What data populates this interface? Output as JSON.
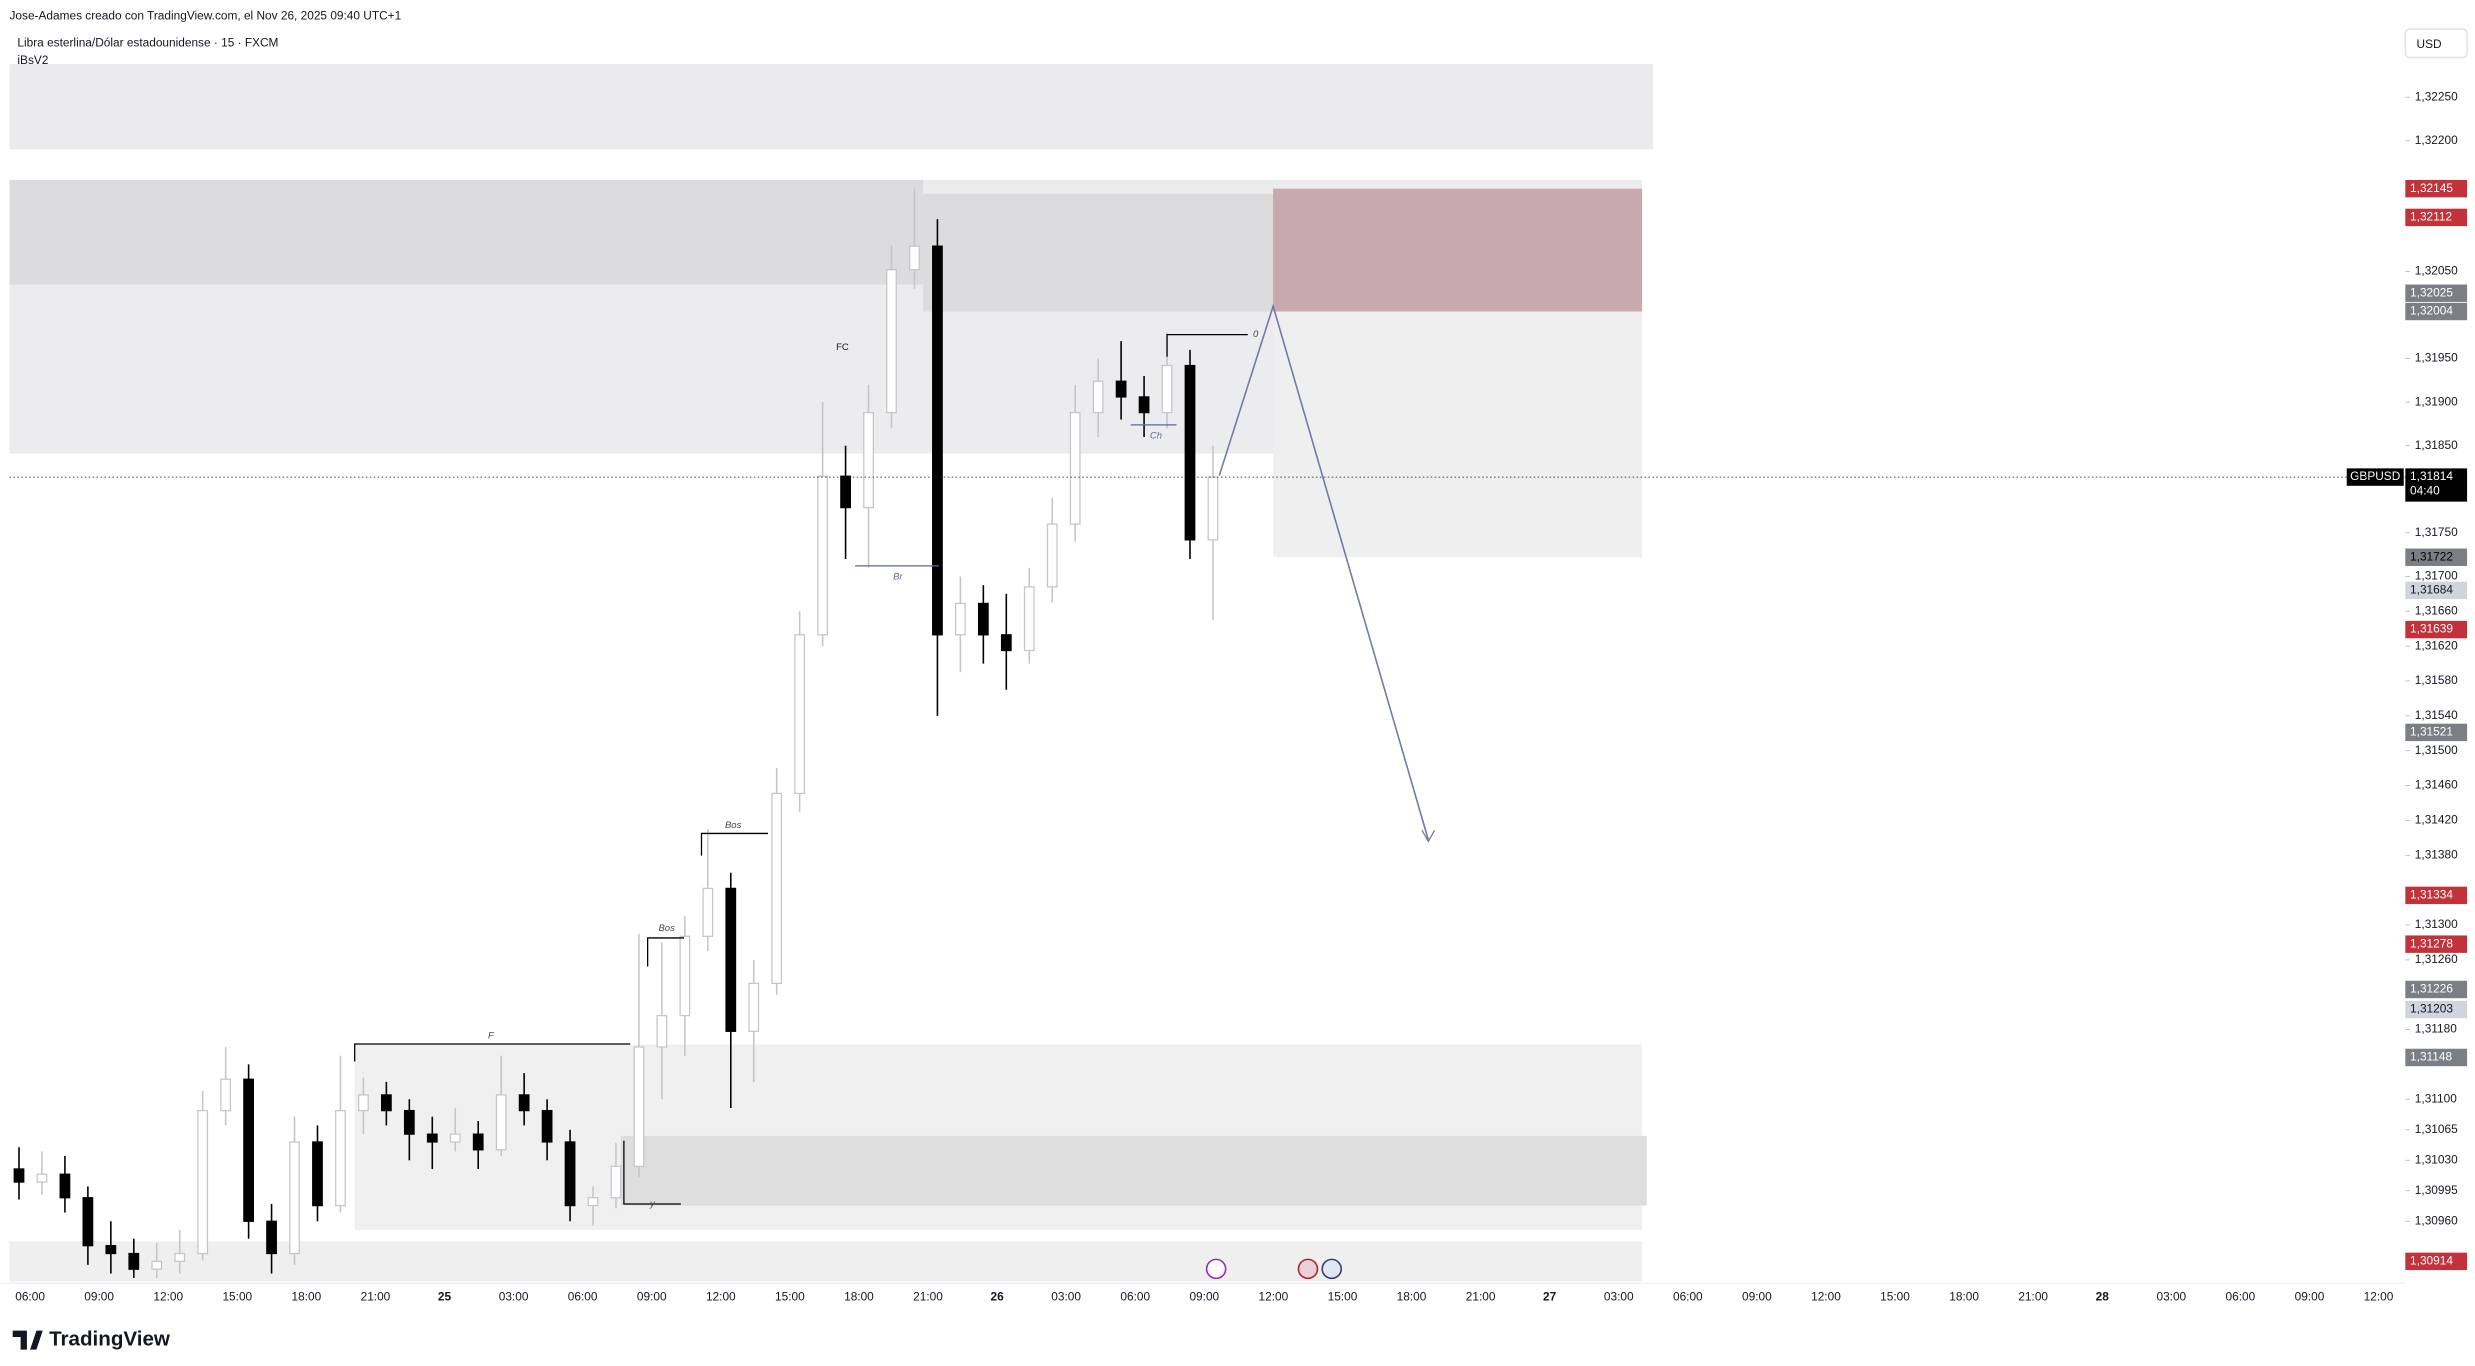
{
  "header": {
    "credit": "Jose-Adames creado con TradingView.com, el Nov 26, 2025 09:40 UTC+1",
    "symbol": "Libra esterlina/Dólar estadounidense · 15 · FXCM",
    "indicator": "iBsV2",
    "currency": "USD",
    "logo": "TradingView"
  },
  "chart_data": {
    "type": "candlestick",
    "ylim": [
      1.30889,
      1.3233
    ],
    "yticks": [
      {
        "value": 1.3225,
        "label": "1,32250"
      },
      {
        "value": 1.322,
        "label": "1,32200"
      },
      {
        "value": 1.3205,
        "label": "1,32050"
      },
      {
        "value": 1.3195,
        "label": "1,31950"
      },
      {
        "value": 1.319,
        "label": "1,31900"
      },
      {
        "value": 1.3185,
        "label": "1,31850"
      },
      {
        "value": 1.3175,
        "label": "1,31750"
      },
      {
        "value": 1.317,
        "label": "1,31700"
      },
      {
        "value": 1.3166,
        "label": "1,31660"
      },
      {
        "value": 1.3162,
        "label": "1,31620"
      },
      {
        "value": 1.3158,
        "label": "1,31580"
      },
      {
        "value": 1.3154,
        "label": "1,31540"
      },
      {
        "value": 1.315,
        "label": "1,31500"
      },
      {
        "value": 1.3146,
        "label": "1,31460"
      },
      {
        "value": 1.3142,
        "label": "1,31420"
      },
      {
        "value": 1.3138,
        "label": "1,31380"
      },
      {
        "value": 1.313,
        "label": "1,31300"
      },
      {
        "value": 1.3126,
        "label": "1,31260"
      },
      {
        "value": 1.3118,
        "label": "1,31180"
      },
      {
        "value": 1.311,
        "label": "1,31100"
      },
      {
        "value": 1.31065,
        "label": "1,31065"
      },
      {
        "value": 1.3103,
        "label": "1,31030"
      },
      {
        "value": 1.30995,
        "label": "1,30995"
      },
      {
        "value": 1.3096,
        "label": "1,30960"
      }
    ],
    "time_labels": [
      "06:00",
      "09:00",
      "12:00",
      "15:00",
      "18:00",
      "21:00",
      "25",
      "03:00",
      "06:00",
      "09:00",
      "12:00",
      "15:00",
      "18:00",
      "21:00",
      "26",
      "03:00",
      "06:00",
      "09:00",
      "12:00",
      "15:00",
      "18:00",
      "21:00",
      "27",
      "03:00",
      "06:00",
      "09:00",
      "12:00",
      "15:00",
      "18:00",
      "21:00",
      "28",
      "03:00",
      "06:00",
      "09:00",
      "12:00"
    ],
    "up_color": "#c4c6cc",
    "down_color": "#000000",
    "open": [
      1.3102,
      1.31005,
      1.31014,
      1.30987,
      1.30932,
      1.30923,
      1.30905,
      1.30914,
      1.30923,
      1.31087,
      1.31123,
      1.3096,
      1.30923,
      1.31051,
      1.30978,
      1.31087,
      1.31105,
      1.31087,
      1.3106,
      1.31051,
      1.3106,
      1.31042,
      1.31105,
      1.31087,
      1.31051,
      1.30978,
      1.30987,
      1.31023,
      1.3116,
      1.31196,
      1.31287,
      1.31342,
      1.31178,
      1.31233,
      1.31451,
      1.31633,
      1.31815,
      1.31779,
      1.31888,
      1.32052,
      1.32079,
      1.31633,
      1.31669,
      1.31633,
      1.31615,
      1.31688,
      1.3176,
      1.31888,
      1.31924,
      1.31906,
      1.31888,
      1.31942,
      1.31742
    ],
    "high": [
      1.31045,
      1.3104,
      1.31035,
      1.31,
      1.3096,
      1.3094,
      1.30935,
      1.3095,
      1.3111,
      1.3116,
      1.3114,
      1.3098,
      1.3108,
      1.3107,
      1.3115,
      1.31125,
      1.3112,
      1.311,
      1.3108,
      1.3109,
      1.31075,
      1.3115,
      1.3113,
      1.311,
      1.31065,
      1.31,
      1.3105,
      1.3129,
      1.3128,
      1.3131,
      1.3141,
      1.3136,
      1.3126,
      1.3148,
      1.3166,
      1.319,
      1.3185,
      1.3192,
      1.3208,
      1.32145,
      1.3211,
      1.317,
      1.3169,
      1.3168,
      1.3171,
      1.3179,
      1.3192,
      1.3195,
      1.3197,
      1.3193,
      1.3198,
      1.3196,
      1.3185
    ],
    "low": [
      1.30985,
      1.3099,
      1.3097,
      1.3091,
      1.309,
      1.30895,
      1.30895,
      1.309,
      1.30915,
      1.3107,
      1.3094,
      1.309,
      1.3091,
      1.3096,
      1.3097,
      1.3106,
      1.3107,
      1.3103,
      1.3102,
      1.3104,
      1.3102,
      1.31035,
      1.3107,
      1.3103,
      1.3096,
      1.30955,
      1.30975,
      1.3101,
      1.311,
      1.3115,
      1.3127,
      1.3109,
      1.3112,
      1.3122,
      1.3143,
      1.3162,
      1.3172,
      1.3171,
      1.3187,
      1.3203,
      1.3154,
      1.3159,
      1.316,
      1.3157,
      1.316,
      1.3167,
      1.3174,
      1.3186,
      1.3188,
      1.3186,
      1.3187,
      1.3172,
      1.3165
    ],
    "close": [
      1.31005,
      1.31014,
      1.30987,
      1.30932,
      1.30923,
      1.30905,
      1.30914,
      1.30923,
      1.31087,
      1.31123,
      1.3096,
      1.30923,
      1.31051,
      1.30978,
      1.31087,
      1.31105,
      1.31087,
      1.3106,
      1.31051,
      1.3106,
      1.31042,
      1.31105,
      1.31087,
      1.31051,
      1.30978,
      1.30987,
      1.31023,
      1.3116,
      1.31196,
      1.31287,
      1.31342,
      1.31178,
      1.31233,
      1.31451,
      1.31633,
      1.31815,
      1.31779,
      1.31888,
      1.32052,
      1.32079,
      1.31633,
      1.31669,
      1.31633,
      1.31615,
      1.31688,
      1.3176,
      1.31888,
      1.31924,
      1.31906,
      1.31888,
      1.31942,
      1.31742,
      1.31814
    ],
    "zones": [
      {
        "top": 1.32288,
        "bottom": 1.3219,
        "color": "#ebebed"
      },
      {
        "top": 1.32155,
        "bottom": 1.31841,
        "color": "#ececee"
      },
      {
        "top": 1.32155,
        "bottom": 1.32035,
        "color": "#dcdcde"
      },
      {
        "top": 1.32139,
        "bottom": 1.32004,
        "color": "#dcdcde"
      },
      {
        "top": 1.32004,
        "bottom": 1.31722,
        "color": "#efeff0"
      },
      {
        "top": 1.32145,
        "bottom": 1.32004,
        "color": "#c8a9ae"
      },
      {
        "top": 1.31163,
        "bottom": 1.3095,
        "color": "#f0f0f1"
      },
      {
        "top": 1.31058,
        "bottom": 1.30978,
        "color": "#dededf"
      },
      {
        "top": 1.30937,
        "bottom": 1.30891,
        "color": "#efeff0"
      }
    ],
    "annotations": [
      "FC",
      "Br",
      "Ch",
      "0",
      "Bos",
      "Bos",
      "F",
      "y"
    ],
    "price_labels": [
      {
        "value": 1.32145,
        "label": "1,32145",
        "color": "#c1323a",
        "text_color": "#ffffff"
      },
      {
        "value": 1.32112,
        "label": "1,32112",
        "color": "#c1323a",
        "text_color": "#ffffff"
      },
      {
        "value": 1.32025,
        "label": "1,32025",
        "color": "#7c7e85",
        "text_color": "#ffffff"
      },
      {
        "value": 1.32004,
        "label": "1,32004",
        "color": "#7c7e85",
        "text_color": "#ffffff"
      },
      {
        "value": 1.31722,
        "label": "1,31722",
        "color": "#7c7e85",
        "text_color": "#000000"
      },
      {
        "value": 1.31684,
        "label": "1,31684",
        "color": "#d1d4dc",
        "text_color": "#131722"
      },
      {
        "value": 1.31639,
        "label": "1,31639",
        "color": "#c1323a",
        "text_color": "#ffffff"
      },
      {
        "value": 1.31521,
        "label": "1,31521",
        "color": "#7c7e85",
        "text_color": "#ffffff"
      },
      {
        "value": 1.31334,
        "label": "1,31334",
        "color": "#c1323a",
        "text_color": "#ffffff"
      },
      {
        "value": 1.31278,
        "label": "1,31278",
        "color": "#c1323a",
        "text_color": "#ffffff"
      },
      {
        "value": 1.31226,
        "label": "1,31226",
        "color": "#7c7e85",
        "text_color": "#ffffff"
      },
      {
        "value": 1.31203,
        "label": "1,31203",
        "color": "#d1d4dc",
        "text_color": "#131722"
      },
      {
        "value": 1.31148,
        "label": "1,31148",
        "color": "#7c7e85",
        "text_color": "#ffffff"
      },
      {
        "value": 1.30914,
        "label": "1,30914",
        "color": "#c1323a",
        "text_color": "#ffffff"
      }
    ],
    "current": {
      "symbol": "GBPUSD",
      "value": 1.31814,
      "label": "1,31814",
      "countdown": "04:40"
    }
  }
}
